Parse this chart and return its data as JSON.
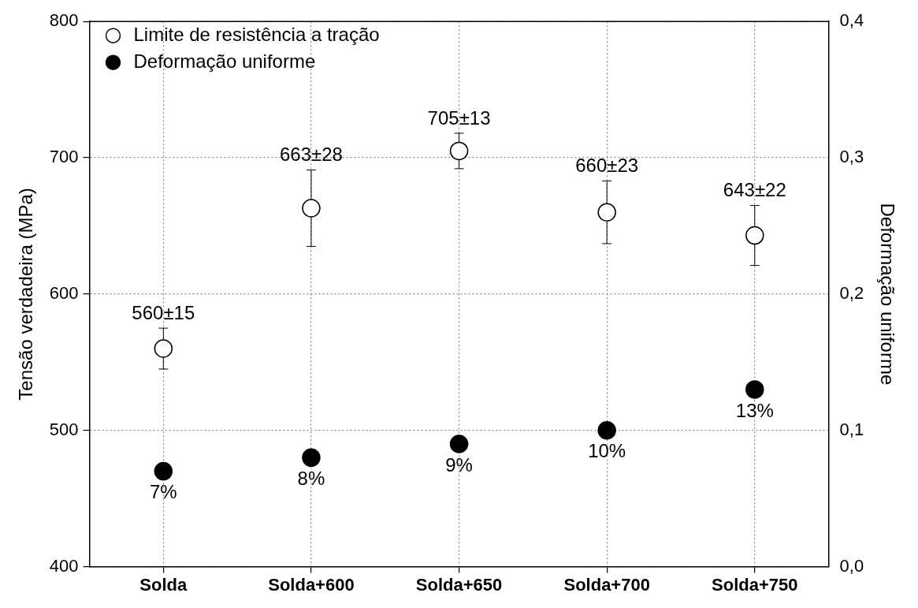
{
  "chart_data": {
    "type": "scatter",
    "ylabel": "Tensão verdadeira (MPa)",
    "y2label": "Deformação uniforme",
    "categories": [
      "Solda",
      "Solda+600",
      "Solda+650",
      "Solda+700",
      "Solda+750"
    ],
    "series": [
      {
        "name": "Limite de resistência a tração",
        "color": "#ffffff",
        "values": [
          560,
          663,
          705,
          660,
          643
        ],
        "errors": [
          15,
          28,
          13,
          23,
          22
        ],
        "value_labels": [
          "560±15",
          "663±28",
          "705±13",
          "660±23",
          "643±22"
        ]
      },
      {
        "name": "Deformação uniforme",
        "axis": "y2",
        "color": "#000000",
        "values": [
          0.07,
          0.08,
          0.09,
          0.1,
          0.13
        ],
        "value_labels": [
          "7%",
          "8%",
          "9%",
          "10%",
          "13%"
        ]
      }
    ],
    "ylim": [
      400,
      800
    ],
    "yticks": [
      400,
      500,
      600,
      700,
      800
    ],
    "y2lim": [
      0,
      0.4
    ],
    "y2ticks": [
      {
        "value": 0,
        "label": "0,0"
      },
      {
        "value": 0.1,
        "label": "0,1"
      },
      {
        "value": 0.2,
        "label": "0,2"
      },
      {
        "value": 0.3,
        "label": "0,3"
      },
      {
        "value": 0.4,
        "label": "0,4"
      }
    ],
    "grid": true,
    "legend": "top left",
    "marker": "circle"
  }
}
